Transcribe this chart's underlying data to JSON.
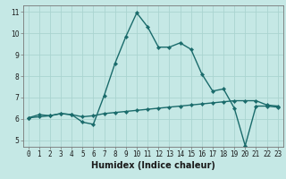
{
  "title": "",
  "xlabel": "Humidex (Indice chaleur)",
  "ylabel": "",
  "bg_color": "#c5e8e5",
  "grid_color": "#aad4d0",
  "line_color": "#1a6b6b",
  "spine_color": "#777777",
  "xlim": [
    -0.5,
    23.5
  ],
  "ylim": [
    4.7,
    11.3
  ],
  "xticks": [
    0,
    1,
    2,
    3,
    4,
    5,
    6,
    7,
    8,
    9,
    10,
    11,
    12,
    13,
    14,
    15,
    16,
    17,
    18,
    19,
    20,
    21,
    22,
    23
  ],
  "yticks": [
    5,
    6,
    7,
    8,
    9,
    10,
    11
  ],
  "line1_x": [
    0,
    1,
    2,
    3,
    4,
    5,
    6,
    7,
    8,
    9,
    10,
    11,
    12,
    13,
    14,
    15,
    16,
    17,
    18,
    19,
    20,
    21,
    22,
    23
  ],
  "line1_y": [
    6.05,
    6.2,
    6.15,
    6.25,
    6.2,
    5.85,
    5.75,
    7.1,
    8.6,
    9.85,
    10.95,
    10.3,
    9.35,
    9.35,
    9.55,
    9.25,
    8.1,
    7.3,
    7.4,
    6.5,
    4.75,
    6.6,
    6.6,
    6.55
  ],
  "line2_x": [
    0,
    1,
    2,
    3,
    4,
    5,
    6,
    7,
    8,
    9,
    10,
    11,
    12,
    13,
    14,
    15,
    16,
    17,
    18,
    19,
    20,
    21,
    22,
    23
  ],
  "line2_y": [
    6.05,
    6.1,
    6.15,
    6.25,
    6.2,
    6.1,
    6.15,
    6.25,
    6.3,
    6.35,
    6.4,
    6.45,
    6.5,
    6.55,
    6.6,
    6.65,
    6.7,
    6.75,
    6.8,
    6.85,
    6.85,
    6.85,
    6.65,
    6.6
  ],
  "marker": "D",
  "marker_size": 2.2,
  "line_width": 1.0,
  "tick_fontsize": 5.5,
  "label_fontsize": 7.0
}
